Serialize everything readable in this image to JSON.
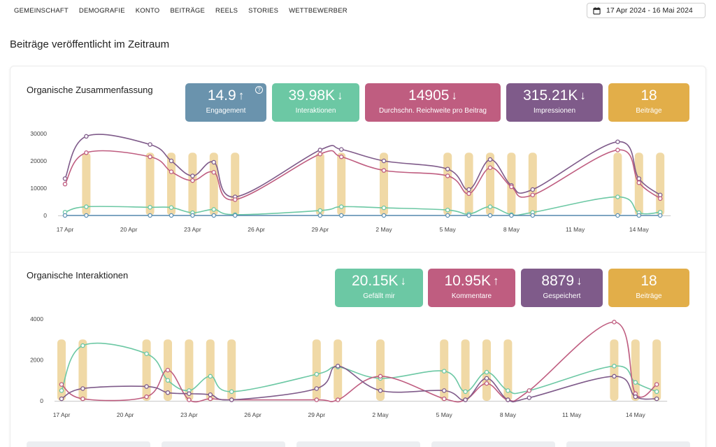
{
  "nav": [
    "GEMEINSCHAFT",
    "DEMOGRAFIE",
    "KONTO",
    "BEITRÄGE",
    "REELS",
    "STORIES",
    "WETTBEWERBER"
  ],
  "date_range": "17 Apr 2024 - 16 Mai 2024",
  "page_heading": "Beiträge veröffentlicht im Zeitraum",
  "summary": {
    "title": "Organische Zusammenfassung",
    "kpis": [
      {
        "value": "14.9",
        "arrow": "↑",
        "label": "Engagement",
        "color": "#6a93ad",
        "help": "?"
      },
      {
        "value": "39.98K",
        "arrow": "↓",
        "label": "Interaktionen",
        "color": "#6cc8a4"
      },
      {
        "value": "14905",
        "arrow": "↓",
        "label": "Durchschn. Reichweite pro Beitrag",
        "color": "#bf5d80"
      },
      {
        "value": "315.21K",
        "arrow": "↓",
        "label": "Impressionen",
        "color": "#7f5b8a"
      },
      {
        "value": "18",
        "arrow": "",
        "label": "Beiträge",
        "color": "#e2ae49"
      }
    ]
  },
  "interactions": {
    "title": "Organische Interaktionen",
    "kpis": [
      {
        "value": "20.15K",
        "arrow": "↓",
        "label": "Gefällt mir",
        "color": "#6cc8a4"
      },
      {
        "value": "10.95K",
        "arrow": "↑",
        "label": "Kommentare",
        "color": "#bf5d80"
      },
      {
        "value": "8879",
        "arrow": "↓",
        "label": "Gespeichert",
        "color": "#7f5b8a"
      },
      {
        "value": "18",
        "arrow": "",
        "label": "Beiträge",
        "color": "#e2ae49"
      }
    ]
  },
  "colors": {
    "bars": "#f0d9a6",
    "purple": "#7f5b8a",
    "pink": "#bf5d80",
    "green": "#6cc8a4",
    "blue": "#5d91b5",
    "axis": "#c9c9c9"
  },
  "chart_data": [
    {
      "type": "line",
      "x_labels": [
        "17 Apr",
        "20 Apr",
        "23 Apr",
        "26 Apr",
        "29 Apr",
        "2 May",
        "5 May",
        "8 May",
        "11 May",
        "14 May"
      ],
      "x_label_days": [
        0,
        3,
        6,
        9,
        12,
        15,
        18,
        21,
        24,
        27
      ],
      "ylim": [
        0,
        30000
      ],
      "yticks": [
        0,
        10000,
        20000,
        30000
      ],
      "bar_days": [
        1,
        4,
        5,
        6,
        7,
        8,
        12,
        13,
        15,
        18,
        19,
        20,
        21,
        22,
        26,
        27,
        28
      ],
      "bar_value": 23000,
      "series": [
        {
          "key": "purple",
          "x": [
            0,
            1,
            4,
            5,
            6,
            7,
            8,
            12,
            13,
            15,
            18,
            19,
            20,
            21,
            22,
            26,
            27,
            28
          ],
          "y": [
            13500,
            29000,
            26000,
            20000,
            14500,
            19500,
            6800,
            24000,
            24200,
            20000,
            17000,
            9500,
            20500,
            11000,
            9500,
            27000,
            13500,
            7500
          ]
        },
        {
          "key": "pink",
          "x": [
            0,
            1,
            4,
            5,
            6,
            7,
            8,
            12,
            13,
            15,
            18,
            19,
            20,
            21,
            22,
            26,
            27,
            28
          ],
          "y": [
            11500,
            23000,
            21500,
            16000,
            12800,
            15800,
            5800,
            22500,
            21500,
            16500,
            14500,
            8000,
            17500,
            10500,
            7500,
            24000,
            12000,
            6200
          ]
        },
        {
          "key": "green",
          "x": [
            0,
            1,
            4,
            5,
            6,
            7,
            8,
            12,
            13,
            15,
            18,
            19,
            20,
            21,
            22,
            26,
            27,
            28
          ],
          "y": [
            1200,
            3200,
            3000,
            2900,
            1000,
            2200,
            300,
            1800,
            3200,
            2800,
            2000,
            500,
            3200,
            300,
            1100,
            6800,
            1000,
            1200
          ]
        },
        {
          "key": "blue",
          "x": [
            0,
            1,
            4,
            5,
            6,
            7,
            8,
            12,
            13,
            15,
            18,
            19,
            20,
            21,
            22,
            26,
            27,
            28
          ],
          "y": [
            0,
            0,
            0,
            0,
            0,
            0,
            0,
            0,
            0,
            0,
            0,
            0,
            0,
            0,
            0,
            0,
            0,
            0
          ]
        }
      ]
    },
    {
      "type": "line",
      "x_labels": [
        "17 Apr",
        "20 Apr",
        "23 Apr",
        "26 Apr",
        "29 Apr",
        "2 May",
        "5 May",
        "8 May",
        "11 May",
        "14 May"
      ],
      "x_label_days": [
        0,
        3,
        6,
        9,
        12,
        15,
        18,
        21,
        24,
        27
      ],
      "ylim": [
        0,
        4000
      ],
      "yticks": [
        0,
        2000,
        4000
      ],
      "bar_days": [
        0,
        1,
        4,
        5,
        6,
        7,
        8,
        12,
        13,
        15,
        18,
        19,
        20,
        21,
        26,
        27,
        28
      ],
      "bar_value": 3000,
      "series": [
        {
          "key": "green",
          "x": [
            0,
            1,
            4,
            5,
            6,
            7,
            8,
            12,
            13,
            15,
            18,
            19,
            20,
            21,
            22,
            26,
            27,
            28
          ],
          "y": [
            500,
            2700,
            2300,
            1000,
            500,
            1200,
            450,
            1300,
            1650,
            1100,
            1450,
            450,
            1400,
            500,
            500,
            1700,
            900,
            450
          ]
        },
        {
          "key": "pink",
          "x": [
            0,
            1,
            4,
            5,
            6,
            7,
            8,
            12,
            13,
            15,
            18,
            19,
            20,
            21,
            22,
            26,
            27,
            28
          ],
          "y": [
            800,
            100,
            200,
            1500,
            50,
            100,
            50,
            50,
            50,
            1200,
            100,
            50,
            850,
            50,
            500,
            3850,
            350,
            800
          ]
        },
        {
          "key": "purple",
          "x": [
            0,
            1,
            4,
            5,
            6,
            7,
            8,
            12,
            13,
            15,
            18,
            19,
            20,
            21,
            22,
            26,
            27,
            28
          ],
          "y": [
            100,
            600,
            700,
            400,
            350,
            300,
            50,
            600,
            1700,
            500,
            500,
            50,
            1100,
            50,
            150,
            1200,
            200,
            100
          ]
        }
      ]
    }
  ]
}
